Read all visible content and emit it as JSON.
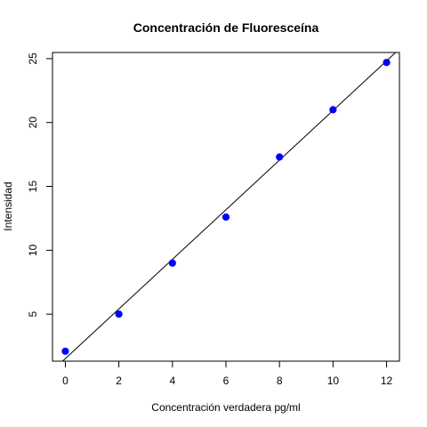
{
  "chart_data": {
    "type": "scatter",
    "title": "Concentración de Fluoresceína",
    "xlabel": "Concentración verdadera pg/ml",
    "ylabel": "Intensidad",
    "x": [
      0,
      2,
      4,
      6,
      8,
      10,
      12
    ],
    "y": [
      2.1,
      5.0,
      9.0,
      12.6,
      17.3,
      21.0,
      24.7
    ],
    "xlim": [
      -0.48,
      12.48
    ],
    "ylim": [
      1.32,
      25.48
    ],
    "x_ticks": [
      0,
      2,
      4,
      6,
      8,
      10,
      12
    ],
    "y_ticks": [
      5,
      10,
      15,
      20,
      25
    ],
    "fit_line": {
      "intercept": 1.52,
      "slope": 1.942
    },
    "grid": false,
    "point_color": "#0000ff",
    "line_color": "#000000"
  }
}
